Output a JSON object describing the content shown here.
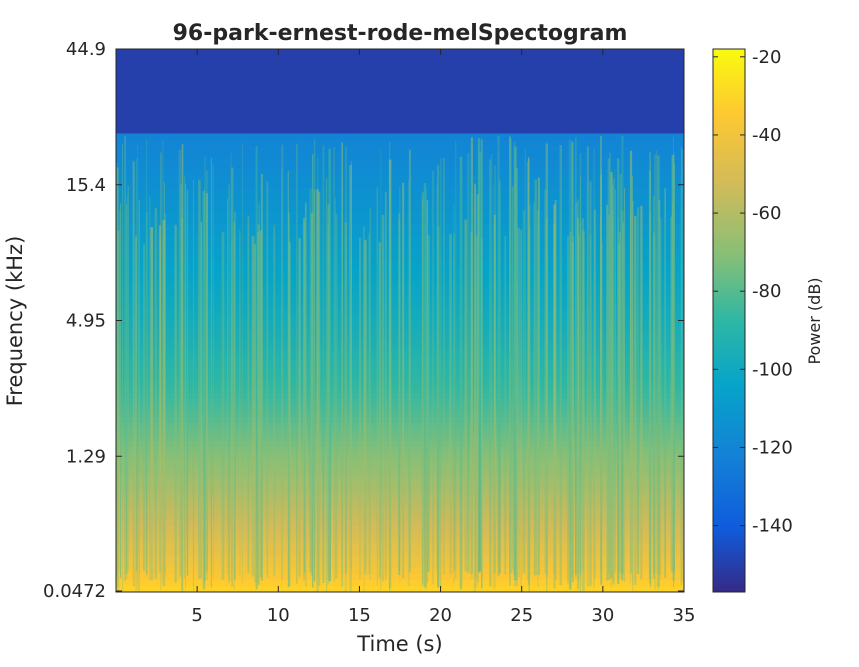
{
  "chart_data": {
    "type": "heatmap",
    "title": "96-park-ernest-rode-melSpectogram",
    "xlabel": "Time (s)",
    "ylabel": "Frequency (kHz)",
    "x_ticks": [
      5,
      10,
      15,
      20,
      25,
      30,
      35
    ],
    "x_tick_labels": [
      "5",
      "10",
      "15",
      "20",
      "25",
      "30",
      "35"
    ],
    "xlim": [
      0,
      35
    ],
    "y_tick_labels": [
      "0.0472",
      "1.29",
      "4.95",
      "15.4",
      "44.9"
    ],
    "y_scale": "mel",
    "colorbar": {
      "label": "Power (dB)",
      "ticks": [
        -20,
        -40,
        -60,
        -80,
        -100,
        -120,
        -140
      ],
      "tick_labels": [
        "-20",
        "-40",
        "-60",
        "-80",
        "-100",
        "-120",
        "-140"
      ],
      "range": [
        -157,
        -18
      ],
      "colormap": "parula"
    },
    "power_profile_db": [
      {
        "band": "0.0472 kHz",
        "level": -34
      },
      {
        "band": "0.5 kHz",
        "level": -48
      },
      {
        "band": "1.29 kHz",
        "level": -62
      },
      {
        "band": "2.5 kHz",
        "level": -78
      },
      {
        "band": "4.95 kHz",
        "level": -95
      },
      {
        "band": "15.4 kHz",
        "level": -110
      },
      {
        "band": "22 kHz",
        "level": -120
      },
      {
        "band": "above 22 kHz",
        "level": -150
      }
    ],
    "grid": false
  }
}
